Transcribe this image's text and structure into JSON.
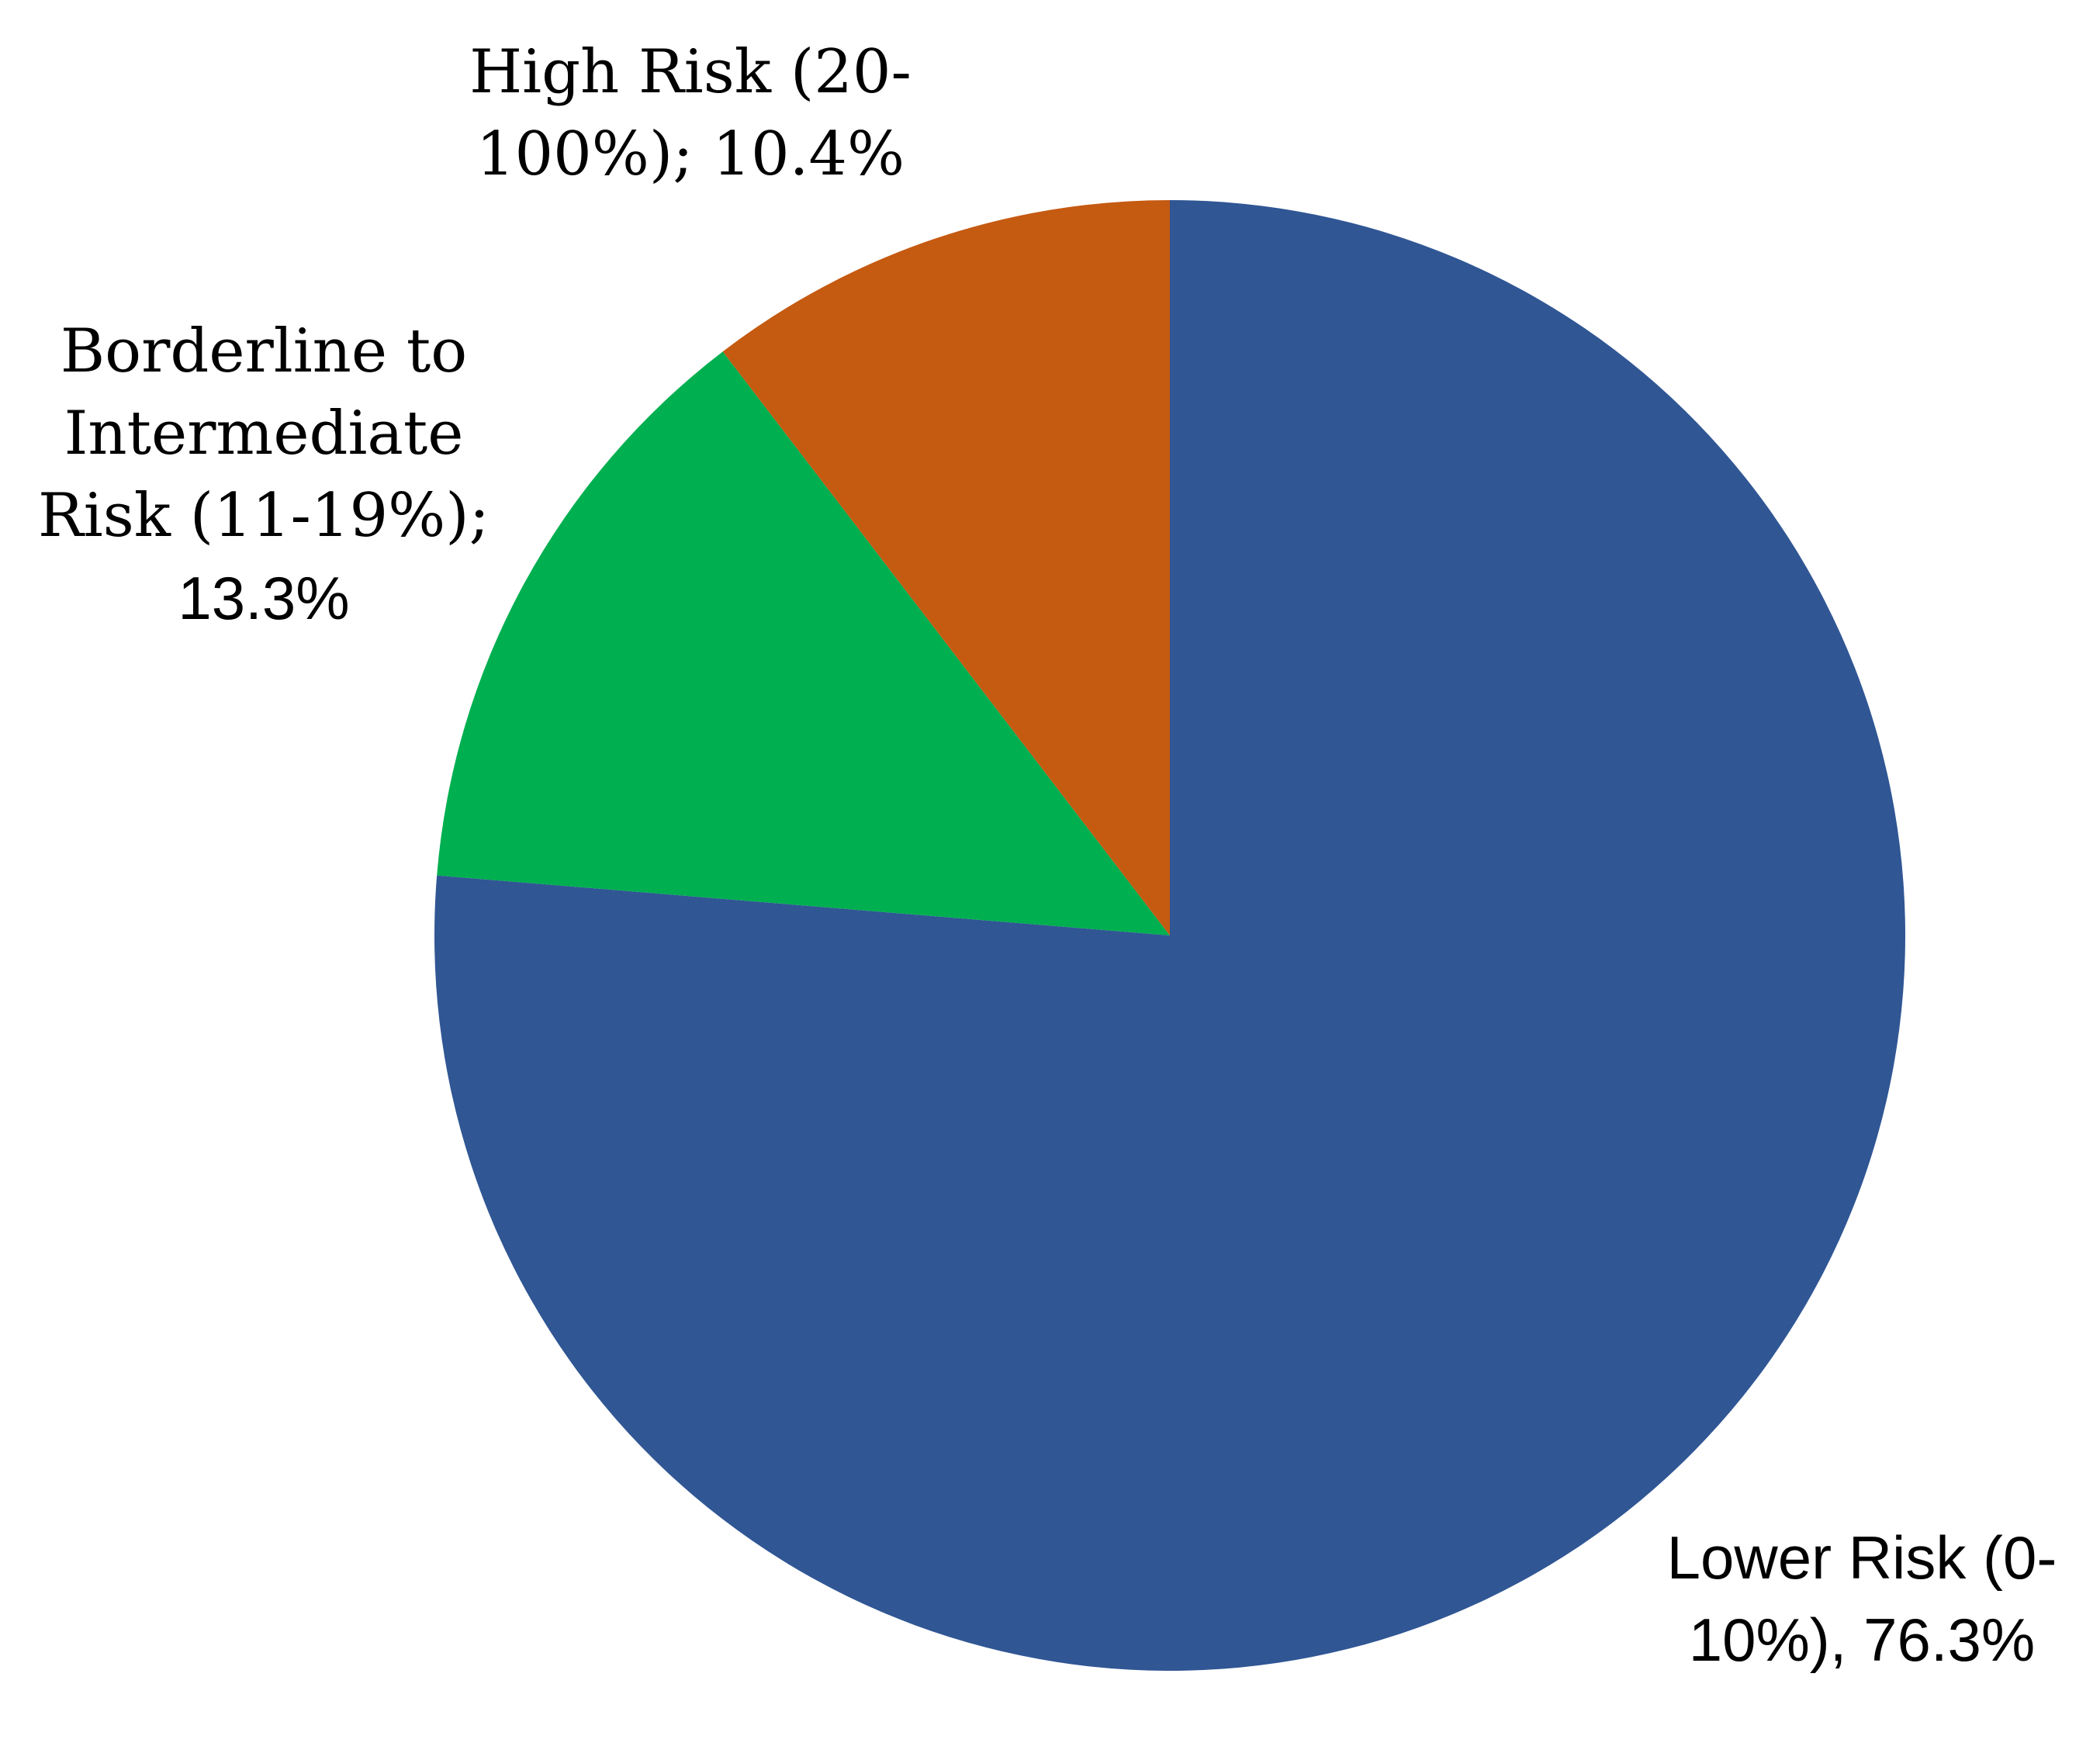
{
  "chart_data": {
    "type": "pie",
    "start_angle_deg": 0,
    "direction": "clockwise",
    "slices": [
      {
        "category": "Lower Risk (0-10%)",
        "value": 76.3,
        "color": "#305694",
        "label_lines": [
          "Lower Risk (0-",
          "10%), 76.3%"
        ]
      },
      {
        "category": "Borderline to Intermediate Risk (11-19%)",
        "value": 13.3,
        "color": "#00AF50",
        "label_lines": [
          "Borderline to",
          "Intermediate",
          "Risk (11-19%);",
          "13.3%"
        ]
      },
      {
        "category": "High Risk (20-100%)",
        "value": 10.4,
        "color": "#C55A11",
        "label_lines": [
          "High Risk (20-",
          "100%); 10.4%"
        ]
      }
    ],
    "title": "",
    "legend": "none"
  }
}
